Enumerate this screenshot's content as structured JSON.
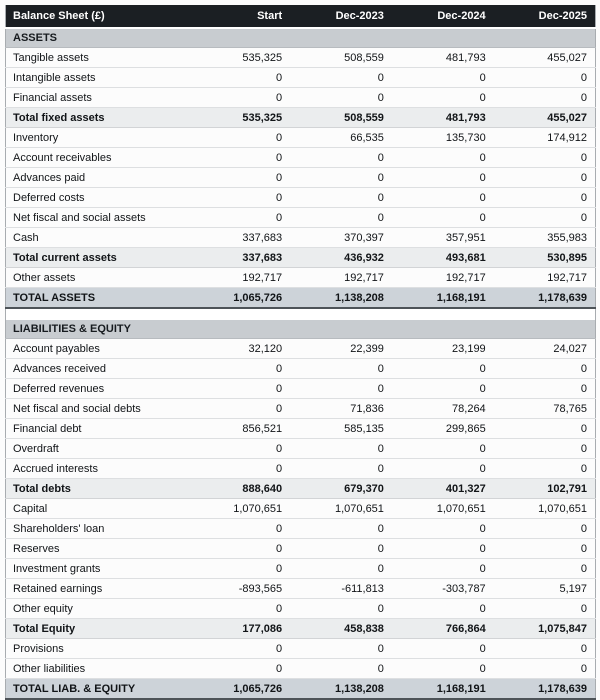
{
  "table": {
    "title": "Balance Sheet (£)",
    "columns": [
      "Start",
      "Dec-2023",
      "Dec-2024",
      "Dec-2025"
    ],
    "rows": [
      {
        "type": "section",
        "label": "ASSETS",
        "values": [
          "",
          "",
          "",
          ""
        ]
      },
      {
        "type": "normal",
        "label": "Tangible assets",
        "values": [
          "535,325",
          "508,559",
          "481,793",
          "455,027"
        ]
      },
      {
        "type": "normal",
        "label": "Intangible assets",
        "values": [
          "0",
          "0",
          "0",
          "0"
        ]
      },
      {
        "type": "normal",
        "label": "Financial assets",
        "values": [
          "0",
          "0",
          "0",
          "0"
        ]
      },
      {
        "type": "subtotal",
        "label": "Total fixed assets",
        "values": [
          "535,325",
          "508,559",
          "481,793",
          "455,027"
        ]
      },
      {
        "type": "normal",
        "label": "Inventory",
        "values": [
          "0",
          "66,535",
          "135,730",
          "174,912"
        ]
      },
      {
        "type": "normal",
        "label": "Account receivables",
        "values": [
          "0",
          "0",
          "0",
          "0"
        ]
      },
      {
        "type": "normal",
        "label": "Advances paid",
        "values": [
          "0",
          "0",
          "0",
          "0"
        ]
      },
      {
        "type": "normal",
        "label": "Deferred costs",
        "values": [
          "0",
          "0",
          "0",
          "0"
        ]
      },
      {
        "type": "normal",
        "label": "Net fiscal and social assets",
        "values": [
          "0",
          "0",
          "0",
          "0"
        ]
      },
      {
        "type": "normal",
        "label": "Cash",
        "values": [
          "337,683",
          "370,397",
          "357,951",
          "355,983"
        ]
      },
      {
        "type": "subtotal",
        "label": "Total current assets",
        "values": [
          "337,683",
          "436,932",
          "493,681",
          "530,895"
        ]
      },
      {
        "type": "normal",
        "label": "Other assets",
        "values": [
          "192,717",
          "192,717",
          "192,717",
          "192,717"
        ]
      },
      {
        "type": "grand",
        "label": "TOTAL ASSETS",
        "values": [
          "1,065,726",
          "1,138,208",
          "1,168,191",
          "1,178,639"
        ]
      },
      {
        "type": "spacer",
        "label": "",
        "values": [
          "",
          "",
          "",
          ""
        ]
      },
      {
        "type": "section",
        "label": "LIABILITIES & EQUITY",
        "values": [
          "",
          "",
          "",
          ""
        ]
      },
      {
        "type": "normal",
        "label": "Account payables",
        "values": [
          "32,120",
          "22,399",
          "23,199",
          "24,027"
        ]
      },
      {
        "type": "normal",
        "label": "Advances received",
        "values": [
          "0",
          "0",
          "0",
          "0"
        ]
      },
      {
        "type": "normal",
        "label": "Deferred revenues",
        "values": [
          "0",
          "0",
          "0",
          "0"
        ]
      },
      {
        "type": "normal",
        "label": "Net fiscal and social debts",
        "values": [
          "0",
          "71,836",
          "78,264",
          "78,765"
        ]
      },
      {
        "type": "normal",
        "label": "Financial debt",
        "values": [
          "856,521",
          "585,135",
          "299,865",
          "0"
        ]
      },
      {
        "type": "normal",
        "label": "Overdraft",
        "values": [
          "0",
          "0",
          "0",
          "0"
        ]
      },
      {
        "type": "normal",
        "label": "Accrued interests",
        "values": [
          "0",
          "0",
          "0",
          "0"
        ]
      },
      {
        "type": "subtotal",
        "label": "Total debts",
        "values": [
          "888,640",
          "679,370",
          "401,327",
          "102,791"
        ]
      },
      {
        "type": "normal",
        "label": "Capital",
        "values": [
          "1,070,651",
          "1,070,651",
          "1,070,651",
          "1,070,651"
        ]
      },
      {
        "type": "normal",
        "label": "Shareholders' loan",
        "values": [
          "0",
          "0",
          "0",
          "0"
        ]
      },
      {
        "type": "normal",
        "label": "Reserves",
        "values": [
          "0",
          "0",
          "0",
          "0"
        ]
      },
      {
        "type": "normal",
        "label": "Investment grants",
        "values": [
          "0",
          "0",
          "0",
          "0"
        ]
      },
      {
        "type": "normal",
        "label": "Retained earnings",
        "values": [
          "-893,565",
          "-611,813",
          "-303,787",
          "5,197"
        ]
      },
      {
        "type": "normal",
        "label": "Other equity",
        "values": [
          "0",
          "0",
          "0",
          "0"
        ]
      },
      {
        "type": "subtotal",
        "label": "Total Equity",
        "values": [
          "177,086",
          "458,838",
          "766,864",
          "1,075,847"
        ]
      },
      {
        "type": "normal",
        "label": "Provisions",
        "values": [
          "0",
          "0",
          "0",
          "0"
        ]
      },
      {
        "type": "normal",
        "label": "Other liabilities",
        "values": [
          "0",
          "0",
          "0",
          "0"
        ]
      },
      {
        "type": "grand",
        "label": "TOTAL LIAB. & EQUITY",
        "values": [
          "1,065,726",
          "1,138,208",
          "1,168,191",
          "1,178,639"
        ]
      }
    ],
    "colors": {
      "header_bg": "#1b1f23",
      "header_text": "#ffffff",
      "section_bg": "#c8ccd0",
      "subtotal_bg": "#ebedee",
      "grand_bg": "#cdd3d9",
      "body_text": "#111417"
    }
  }
}
